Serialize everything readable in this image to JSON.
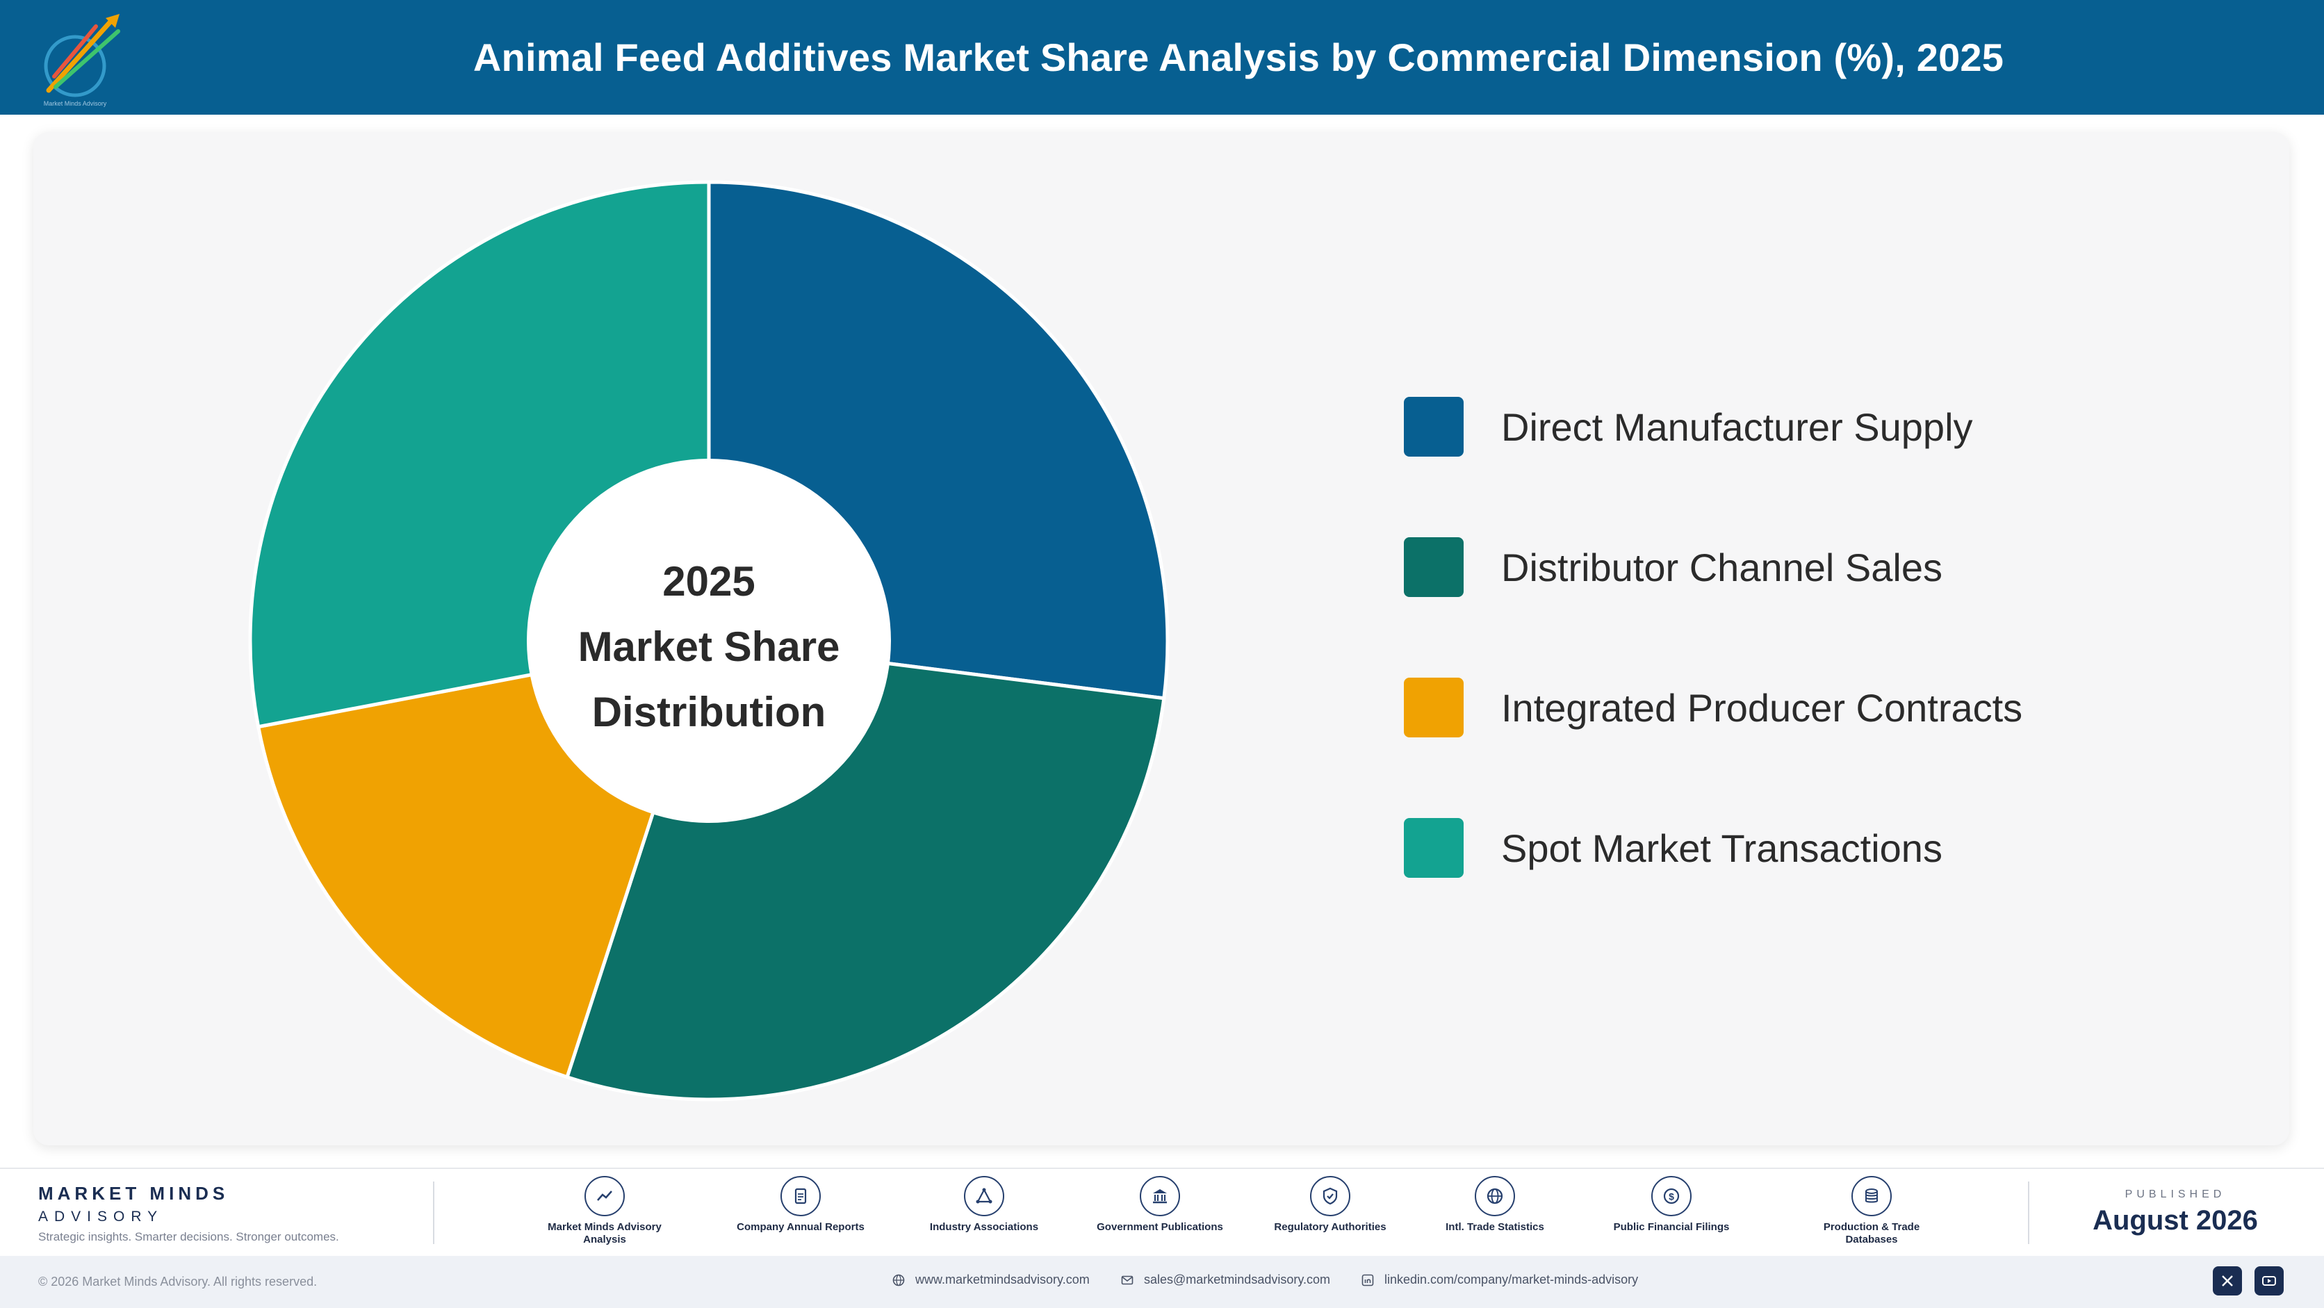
{
  "header": {
    "title": "Animal Feed Additives Market Share Analysis by Commercial Dimension (%), 2025"
  },
  "colors": {
    "header_bg": "#075f91",
    "direct": "#075f91",
    "distributor": "#0c7168",
    "integrated": "#f0a202",
    "spot": "#13a391"
  },
  "chart_data": {
    "type": "pie",
    "variant": "donut",
    "center_label": [
      "2025",
      "Market Share",
      "Distribution"
    ],
    "legend_position": "right",
    "categories": [
      "Direct Manufacturer Supply",
      "Distributor Channel Sales",
      "Integrated Producer Contracts",
      "Spot Market Transactions"
    ],
    "values": [
      27,
      28,
      17,
      28
    ],
    "colors": [
      "#075f91",
      "#0c7168",
      "#f0a202",
      "#13a391"
    ]
  },
  "footer": {
    "brand_name": "MARKET MINDS",
    "brand_sub": "ADVISORY",
    "brand_tagline": "Strategic insights. Smarter decisions. Stronger outcomes.",
    "sources": [
      {
        "label": "Market Minds Advisory Analysis",
        "icon": "chart-line-icon"
      },
      {
        "label": "Company Annual Reports",
        "icon": "document-icon"
      },
      {
        "label": "Industry Associations",
        "icon": "network-icon"
      },
      {
        "label": "Government Publications",
        "icon": "government-building-icon"
      },
      {
        "label": "Regulatory Authorities",
        "icon": "shield-check-icon"
      },
      {
        "label": "Intl. Trade Statistics",
        "icon": "globe-icon"
      },
      {
        "label": "Public Financial Filings",
        "icon": "dollar-coin-icon"
      },
      {
        "label": "Production & Trade Databases",
        "icon": "database-icon"
      }
    ],
    "published_caption": "PUBLISHED",
    "published_date": "August 2026",
    "copyright": "© 2026 Market Minds Advisory. All rights reserved.",
    "website": "www.marketmindsadvisory.com",
    "email": "sales@marketmindsadvisory.com",
    "linkedin": "linkedin.com/company/market-minds-advisory"
  }
}
